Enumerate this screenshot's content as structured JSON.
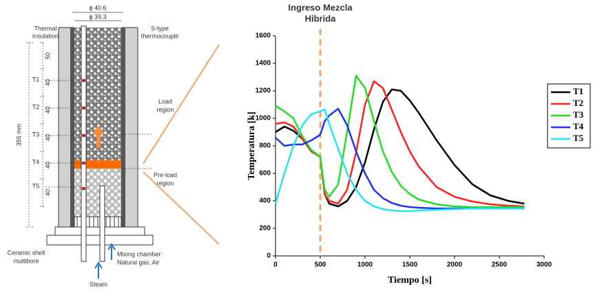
{
  "chart_data": {
    "type": "line",
    "annotation": {
      "lines": [
        "Ingreso Mezcla",
        "Hibrida"
      ],
      "x": 500,
      "color": "#f4a460"
    },
    "xlabel": "Tiempo [s]",
    "ylabel": "Temperatura [k]",
    "x": [
      0,
      100,
      200,
      300,
      400,
      500,
      550,
      600,
      700,
      800,
      900,
      1000,
      1100,
      1200,
      1300,
      1400,
      1500,
      1600,
      1800,
      2000,
      2200,
      2400,
      2600,
      2780
    ],
    "series": [
      {
        "name": "T1",
        "color": "#000000",
        "values": [
          900,
          940,
          910,
          850,
          760,
          720,
          450,
          380,
          360,
          400,
          500,
          680,
          920,
          1120,
          1210,
          1200,
          1130,
          1040,
          840,
          660,
          520,
          440,
          400,
          380
        ]
      },
      {
        "name": "T2",
        "color": "#ff2020",
        "values": [
          960,
          970,
          940,
          850,
          760,
          720,
          450,
          400,
          380,
          480,
          750,
          1100,
          1270,
          1220,
          1060,
          900,
          760,
          650,
          500,
          430,
          395,
          375,
          365,
          360
        ]
      },
      {
        "name": "T3",
        "color": "#22dd22",
        "values": [
          1090,
          1050,
          1000,
          870,
          770,
          720,
          480,
          430,
          520,
          900,
          1310,
          1220,
          980,
          760,
          610,
          510,
          450,
          410,
          375,
          360,
          355,
          355,
          355,
          355
        ]
      },
      {
        "name": "T4",
        "color": "#2233ee",
        "values": [
          860,
          800,
          810,
          810,
          840,
          880,
          980,
          1020,
          1070,
          950,
          760,
          600,
          480,
          420,
          385,
          365,
          355,
          350,
          345,
          345,
          345,
          345,
          345,
          345
        ]
      },
      {
        "name": "T5",
        "color": "#22e5f0",
        "values": [
          380,
          600,
          800,
          950,
          1030,
          1050,
          1065,
          960,
          780,
          600,
          480,
          400,
          360,
          340,
          330,
          325,
          325,
          330,
          335,
          340,
          345,
          345,
          345,
          345
        ]
      }
    ],
    "xlim": [
      0,
      3000
    ],
    "xticks": [
      0,
      500,
      1000,
      1500,
      2000,
      2500,
      3000
    ],
    "ylim": [
      0,
      1600
    ],
    "yticks": [
      0,
      200,
      400,
      600,
      800,
      1000,
      1200,
      1400,
      1600
    ],
    "grid": false,
    "legend": "right"
  },
  "diagram": {
    "thermal_insulation": [
      "Thermal",
      "insulation"
    ],
    "outer_diameter": "ϕ 40.6",
    "inner_diameter": "ϕ 39.3",
    "thermocouple": [
      "S-type",
      "thermocouple"
    ],
    "dimensions": [
      "50",
      "40",
      "40",
      "40",
      "40",
      "40"
    ],
    "positions": [
      "T1",
      "T2",
      "T3",
      "T4",
      "T5"
    ],
    "height": "355 mm",
    "load_region": [
      "Load",
      "region"
    ],
    "preload_region": [
      "Pre-load",
      "region"
    ],
    "ceramic_shell": [
      "Ceramic shell",
      "multibore"
    ],
    "mixing_chamber": [
      "Mixing chamber:",
      "Natural gas; Air"
    ],
    "steam": "Steam"
  }
}
